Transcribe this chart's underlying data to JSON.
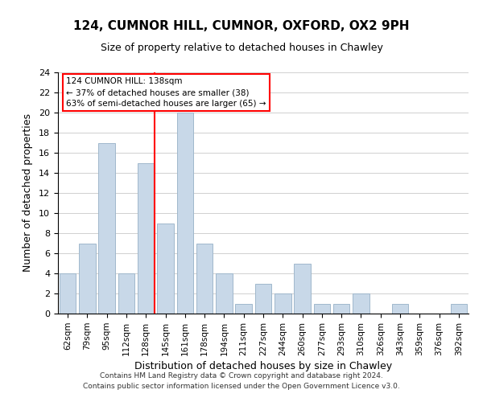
{
  "title": "124, CUMNOR HILL, CUMNOR, OXFORD, OX2 9PH",
  "subtitle": "Size of property relative to detached houses in Chawley",
  "xlabel": "Distribution of detached houses by size in Chawley",
  "ylabel": "Number of detached properties",
  "bin_labels": [
    "62sqm",
    "79sqm",
    "95sqm",
    "112sqm",
    "128sqm",
    "145sqm",
    "161sqm",
    "178sqm",
    "194sqm",
    "211sqm",
    "227sqm",
    "244sqm",
    "260sqm",
    "277sqm",
    "293sqm",
    "310sqm",
    "326sqm",
    "343sqm",
    "359sqm",
    "376sqm",
    "392sqm"
  ],
  "bar_heights": [
    4,
    7,
    17,
    4,
    15,
    9,
    20,
    7,
    4,
    1,
    3,
    2,
    5,
    1,
    1,
    2,
    0,
    1,
    0,
    0,
    1
  ],
  "bar_color": "#c8d8e8",
  "bar_edge_color": "#a0b8cc",
  "red_line_index": 4,
  "ylim": [
    0,
    24
  ],
  "yticks": [
    0,
    2,
    4,
    6,
    8,
    10,
    12,
    14,
    16,
    18,
    20,
    22,
    24
  ],
  "annotation_title": "124 CUMNOR HILL: 138sqm",
  "annotation_line1": "← 37% of detached houses are smaller (38)",
  "annotation_line2": "63% of semi-detached houses are larger (65) →",
  "footer1": "Contains HM Land Registry data © Crown copyright and database right 2024.",
  "footer2": "Contains public sector information licensed under the Open Government Licence v3.0."
}
